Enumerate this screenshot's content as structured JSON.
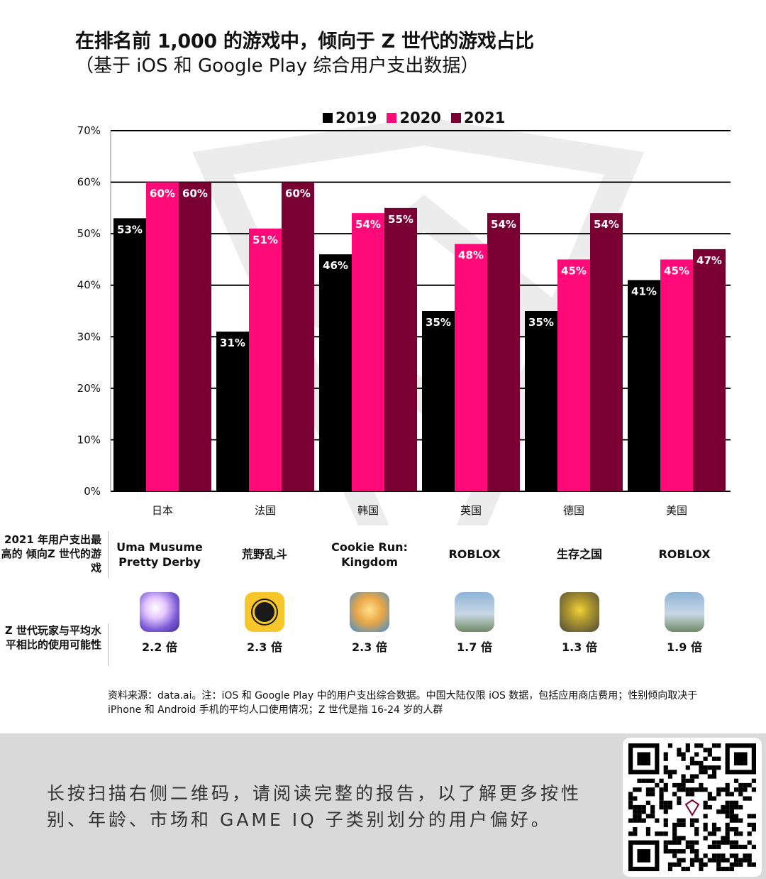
{
  "title": "在排名前 1,000 的游戏中，倾向于 Z 世代的游戏占比",
  "subtitle": "（基于 iOS 和 Google Play 综合用户支出数据）",
  "colors": {
    "y2019": "#000000",
    "y2020": "#ff0a78",
    "y2021": "#7a0034"
  },
  "chart_data": {
    "type": "bar",
    "categories": [
      "日本",
      "法国",
      "韩国",
      "英国",
      "德国",
      "美国"
    ],
    "series": [
      {
        "name": "2019",
        "values": [
          53,
          31,
          46,
          35,
          35,
          41
        ]
      },
      {
        "name": "2020",
        "values": [
          60,
          51,
          54,
          48,
          45,
          45
        ]
      },
      {
        "name": "2021",
        "values": [
          60,
          60,
          55,
          54,
          54,
          47
        ]
      }
    ],
    "data_labels": [
      [
        "53%",
        "31%",
        "46%",
        "35%",
        "35%",
        "41%"
      ],
      [
        "60%",
        "51%",
        "54%",
        "48%",
        "45%",
        "45%"
      ],
      [
        "60%",
        "60%",
        "55%",
        "54%",
        "54%",
        "47%"
      ]
    ],
    "yticks": [
      "0%",
      "10%",
      "20%",
      "30%",
      "40%",
      "50%",
      "60%",
      "70%"
    ],
    "ylim": [
      0,
      70
    ],
    "grid": true,
    "legend_position": "top"
  },
  "table": {
    "row1_label": "2021 年用户支出最高的 倾向Z 世代的游戏",
    "row2_label": "Z 世代玩家与平均水平相比的使用可能性",
    "games": [
      "Uma Musume Pretty Derby",
      "荒野乱斗",
      "Cookie Run: Kingdom",
      "ROBLOX",
      "生存之国",
      "ROBLOX"
    ],
    "multipliers": [
      "2.2 倍",
      "2.3 倍",
      "2.3 倍",
      "1.7 倍",
      "1.3 倍",
      "1.9 倍"
    ],
    "icons": [
      "uma-musume-icon",
      "brawl-stars-icon",
      "cookie-run-icon",
      "roblox-icon",
      "state-of-survival-icon",
      "roblox-icon"
    ]
  },
  "source": "资料来源：data.ai。注：iOS 和 Google Play 中的用户支出综合数据。中国大陆仅限 iOS 数据，包括应用商店费用；性别倾向取决于 iPhone 和 Android 手机的平均人口使用情况；Z 世代是指 16-24 岁的人群",
  "footer": {
    "text": "长按扫描右侧二维码，请阅读完整的报告，以了解更多按性别、年龄、市场和 GAME IQ 子类别划分的用户偏好。"
  }
}
